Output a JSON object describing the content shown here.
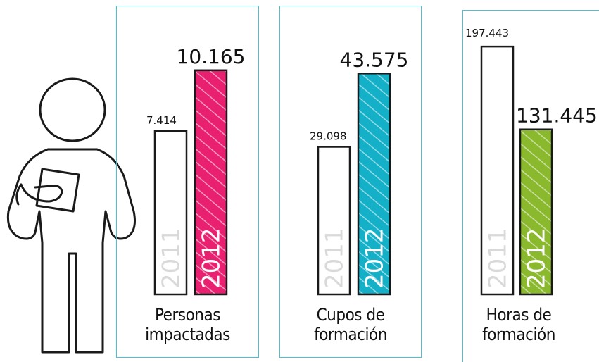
{
  "colors": {
    "panel_border": "#4cc0d3",
    "bar_2011": "#ffffff",
    "bar_2011_label": "#d9d9d9",
    "outline": "#1a1a1a"
  },
  "chart_data": [
    {
      "type": "bar",
      "categories": [
        "2011",
        "2012"
      ],
      "values": [
        7414,
        10165
      ],
      "value_labels": [
        "7.414",
        "10.165"
      ],
      "xlabel": "Personas impactadas",
      "color_2012": "#e8206f",
      "ylim": [
        0,
        11500
      ]
    },
    {
      "type": "bar",
      "categories": [
        "2011",
        "2012"
      ],
      "values": [
        29098,
        43575
      ],
      "value_labels": [
        "29.098",
        "43.575"
      ],
      "xlabel": "Cupos de formación",
      "color_2012": "#13b0c8",
      "ylim": [
        0,
        50000
      ]
    },
    {
      "type": "bar",
      "categories": [
        "2011",
        "2012"
      ],
      "values": [
        197443,
        131445
      ],
      "value_labels": [
        "197.443",
        "131.445"
      ],
      "xlabel": "Horas de formación",
      "color_2012": "#8ab92d",
      "ylim": [
        0,
        202000
      ]
    }
  ]
}
